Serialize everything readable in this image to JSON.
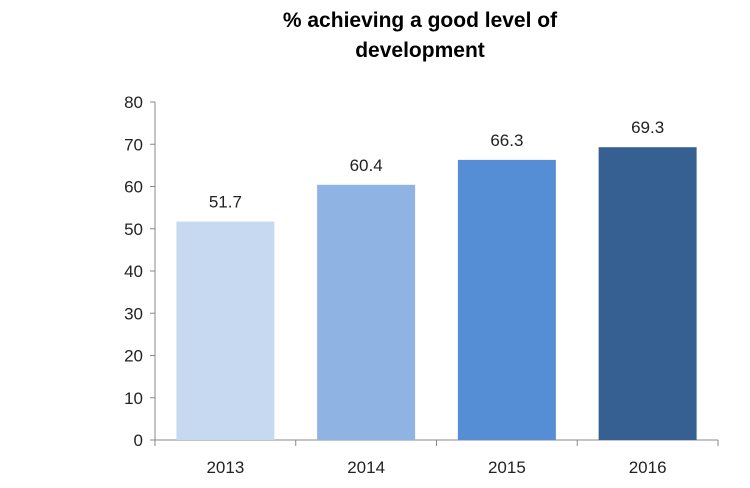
{
  "chart_data": {
    "type": "bar",
    "title_lines": [
      "% achieving a good level of",
      "development"
    ],
    "categories": [
      "2013",
      "2014",
      "2015",
      "2016"
    ],
    "values": [
      51.7,
      60.4,
      66.3,
      69.3
    ],
    "data_labels": [
      "51.7",
      "60.4",
      "66.3",
      "69.3"
    ],
    "colors": [
      "#c6d9f1",
      "#8fb3e2",
      "#558ed5",
      "#376092"
    ],
    "xlabel": "",
    "ylabel": "",
    "ylim": [
      0,
      80
    ],
    "yticks": [
      0,
      10,
      20,
      30,
      40,
      50,
      60,
      70,
      80
    ],
    "grid": false,
    "legend": "none"
  }
}
